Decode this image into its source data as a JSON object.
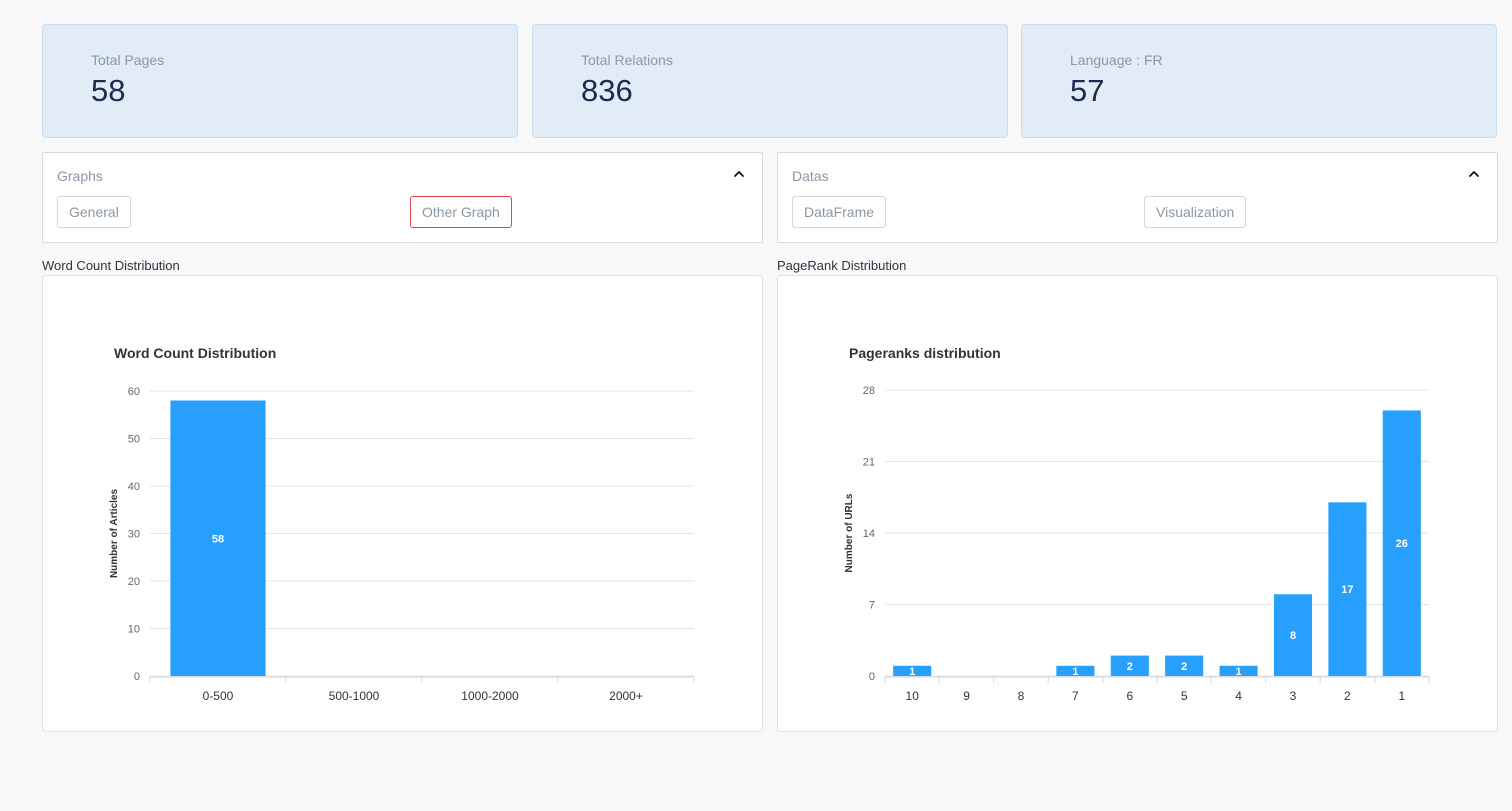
{
  "metrics": [
    {
      "label": "Total Pages",
      "value": "58"
    },
    {
      "label": "Total Relations",
      "value": "836"
    },
    {
      "label": "Language : FR",
      "value": "57"
    }
  ],
  "expanders": {
    "graphs": {
      "title": "Graphs",
      "buttons": [
        "General",
        "Other Graph"
      ],
      "active": "Other Graph"
    },
    "datas": {
      "title": "Datas",
      "buttons": [
        "DataFrame",
        "Visualization"
      ]
    }
  },
  "sections": {
    "word_count": "Word Count Distribution",
    "pagerank": "PageRank Distribution"
  },
  "colors": {
    "bar": "#279ffc",
    "active_border": "#e0464c"
  },
  "icons": {
    "expander_toggle": "chevron-up-icon"
  },
  "chart_data": [
    {
      "type": "bar",
      "title": "Word Count Distribution",
      "xlabel": "",
      "ylabel": "Number of Articles",
      "categories": [
        "0-500",
        "500-1000",
        "1000-2000",
        "2000+"
      ],
      "values": [
        58,
        0,
        0,
        0
      ],
      "data_labels": [
        "58",
        "",
        "",
        ""
      ],
      "ylim": [
        0,
        60
      ],
      "yticks": [
        0,
        10,
        20,
        30,
        40,
        50,
        60
      ],
      "grid": true
    },
    {
      "type": "bar",
      "title": "Pageranks distribution",
      "xlabel": "",
      "ylabel": "Number of URLs",
      "categories": [
        "10",
        "9",
        "8",
        "7",
        "6",
        "5",
        "4",
        "3",
        "2",
        "1"
      ],
      "values": [
        1,
        0,
        0,
        1,
        2,
        2,
        1,
        8,
        17,
        26
      ],
      "data_labels": [
        "1",
        "",
        "",
        "1",
        "2",
        "2",
        "1",
        "8",
        "17",
        "26"
      ],
      "ylim": [
        0,
        28
      ],
      "yticks": [
        0,
        7,
        14,
        21,
        28
      ],
      "grid": true
    }
  ]
}
